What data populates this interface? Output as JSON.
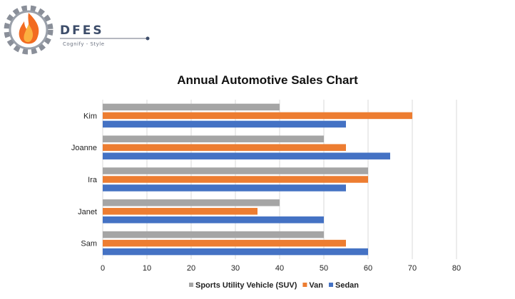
{
  "brand": {
    "name": "DFES",
    "tagline": "Cognify - Style"
  },
  "chart_data": {
    "type": "bar",
    "orientation": "horizontal",
    "title": "Annual Automotive Sales Chart",
    "xlabel": "",
    "ylabel": "",
    "categories": [
      "Kim",
      "Joanne",
      "Ira",
      "Janet",
      "Sam"
    ],
    "series": [
      {
        "name": "Sports Utility Vehicle (SUV)",
        "color": "#a5a5a5",
        "values": [
          40,
          50,
          60,
          40,
          50
        ]
      },
      {
        "name": "Van",
        "color": "#ed7d31",
        "values": [
          70,
          55,
          60,
          35,
          55
        ]
      },
      {
        "name": "Sedan",
        "color": "#4472c4",
        "values": [
          55,
          65,
          55,
          50,
          60
        ]
      }
    ],
    "xlim": [
      0,
      80
    ],
    "xticks": [
      "0",
      "10",
      "20",
      "30",
      "40",
      "50",
      "60",
      "70",
      "80"
    ],
    "grid": true,
    "legend": "bottom"
  }
}
